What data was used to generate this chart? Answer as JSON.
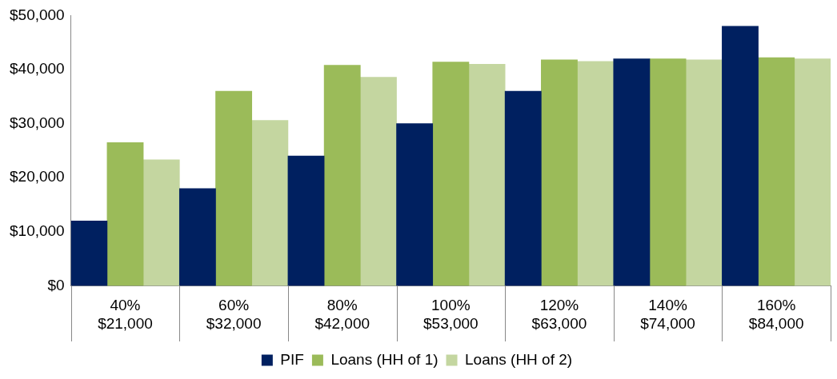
{
  "chart_data": {
    "type": "bar",
    "categories": [
      "40%\n$21,000",
      "60%\n$32,000",
      "80%\n$42,000",
      "100%\n$53,000",
      "120%\n$63,000",
      "140%\n$74,000",
      "160%\n$84,000"
    ],
    "series": [
      {
        "name": "PIF",
        "color": "#002060",
        "values": [
          12000,
          18000,
          24000,
          30000,
          36000,
          42000,
          48000
        ]
      },
      {
        "name": "Loans (HH of 1)",
        "color": "#9bbb59",
        "values": [
          26500,
          36000,
          40800,
          41400,
          41800,
          42000,
          42200
        ]
      },
      {
        "name": "Loans (HH of 2)",
        "color": "#c4d6a0",
        "values": [
          23300,
          30600,
          38600,
          41000,
          41500,
          41800,
          42000
        ]
      }
    ],
    "ylim": [
      0,
      50000
    ],
    "yticks": [
      {
        "value": 0,
        "label": "$0"
      },
      {
        "value": 10000,
        "label": "$10,000"
      },
      {
        "value": 20000,
        "label": "$20,000"
      },
      {
        "value": 30000,
        "label": "$30,000"
      },
      {
        "value": 40000,
        "label": "$40,000"
      },
      {
        "value": 50000,
        "label": "$50,000"
      }
    ],
    "grid": false,
    "legend": "bottom"
  }
}
